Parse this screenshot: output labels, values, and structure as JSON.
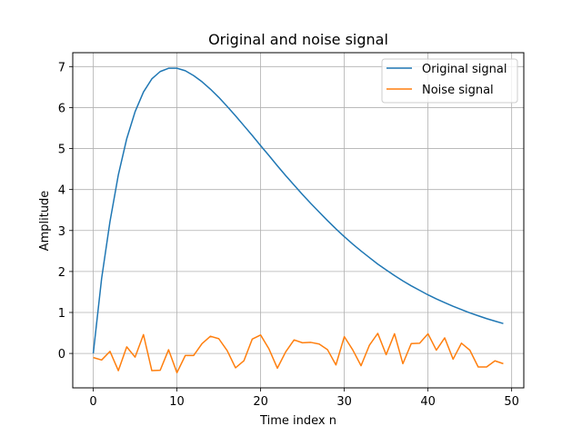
{
  "chart_data": {
    "type": "line",
    "title": "Original and noise signal",
    "xlabel": "Time index n",
    "ylabel": "Amplitude",
    "xlim": [
      -2.45,
      51.45
    ],
    "ylim": [
      -0.84,
      7.34
    ],
    "xticks": [
      0,
      10,
      20,
      30,
      40,
      50
    ],
    "yticks": [
      0,
      1,
      2,
      3,
      4,
      5,
      6,
      7
    ],
    "grid": true,
    "legend_position": "top-right",
    "x": [
      0,
      1,
      2,
      3,
      4,
      5,
      6,
      7,
      8,
      9,
      10,
      11,
      12,
      13,
      14,
      15,
      16,
      17,
      18,
      19,
      20,
      21,
      22,
      23,
      24,
      25,
      26,
      27,
      28,
      29,
      30,
      31,
      32,
      33,
      34,
      35,
      36,
      37,
      38,
      39,
      40,
      41,
      42,
      43,
      44,
      45,
      46,
      47,
      48,
      49
    ],
    "series": [
      {
        "name": "Original signal",
        "color": "#1f77b4",
        "values": [
          0.0,
          1.83,
          3.22,
          4.36,
          5.24,
          5.9,
          6.38,
          6.7,
          6.88,
          6.96,
          6.96,
          6.9,
          6.78,
          6.63,
          6.45,
          6.25,
          6.03,
          5.8,
          5.56,
          5.32,
          5.07,
          4.83,
          4.58,
          4.34,
          4.11,
          3.88,
          3.66,
          3.45,
          3.24,
          3.04,
          2.85,
          2.67,
          2.5,
          2.34,
          2.18,
          2.04,
          1.9,
          1.77,
          1.65,
          1.54,
          1.43,
          1.33,
          1.24,
          1.15,
          1.07,
          0.99,
          0.92,
          0.85,
          0.79,
          0.73
        ]
      },
      {
        "name": "Noise signal",
        "color": "#ff7f0e",
        "values": [
          -0.1,
          -0.16,
          0.05,
          -0.42,
          0.16,
          -0.09,
          0.46,
          -0.42,
          -0.41,
          0.09,
          -0.47,
          -0.05,
          -0.05,
          0.24,
          0.42,
          0.36,
          0.07,
          -0.35,
          -0.18,
          0.35,
          0.45,
          0.11,
          -0.36,
          0.04,
          0.33,
          0.26,
          0.27,
          0.23,
          0.09,
          -0.28,
          0.41,
          0.09,
          -0.3,
          0.2,
          0.49,
          -0.03,
          0.48,
          -0.25,
          0.24,
          0.25,
          0.48,
          0.08,
          0.38,
          -0.14,
          0.25,
          0.08,
          -0.33,
          -0.33,
          -0.18,
          -0.25
        ]
      }
    ]
  }
}
